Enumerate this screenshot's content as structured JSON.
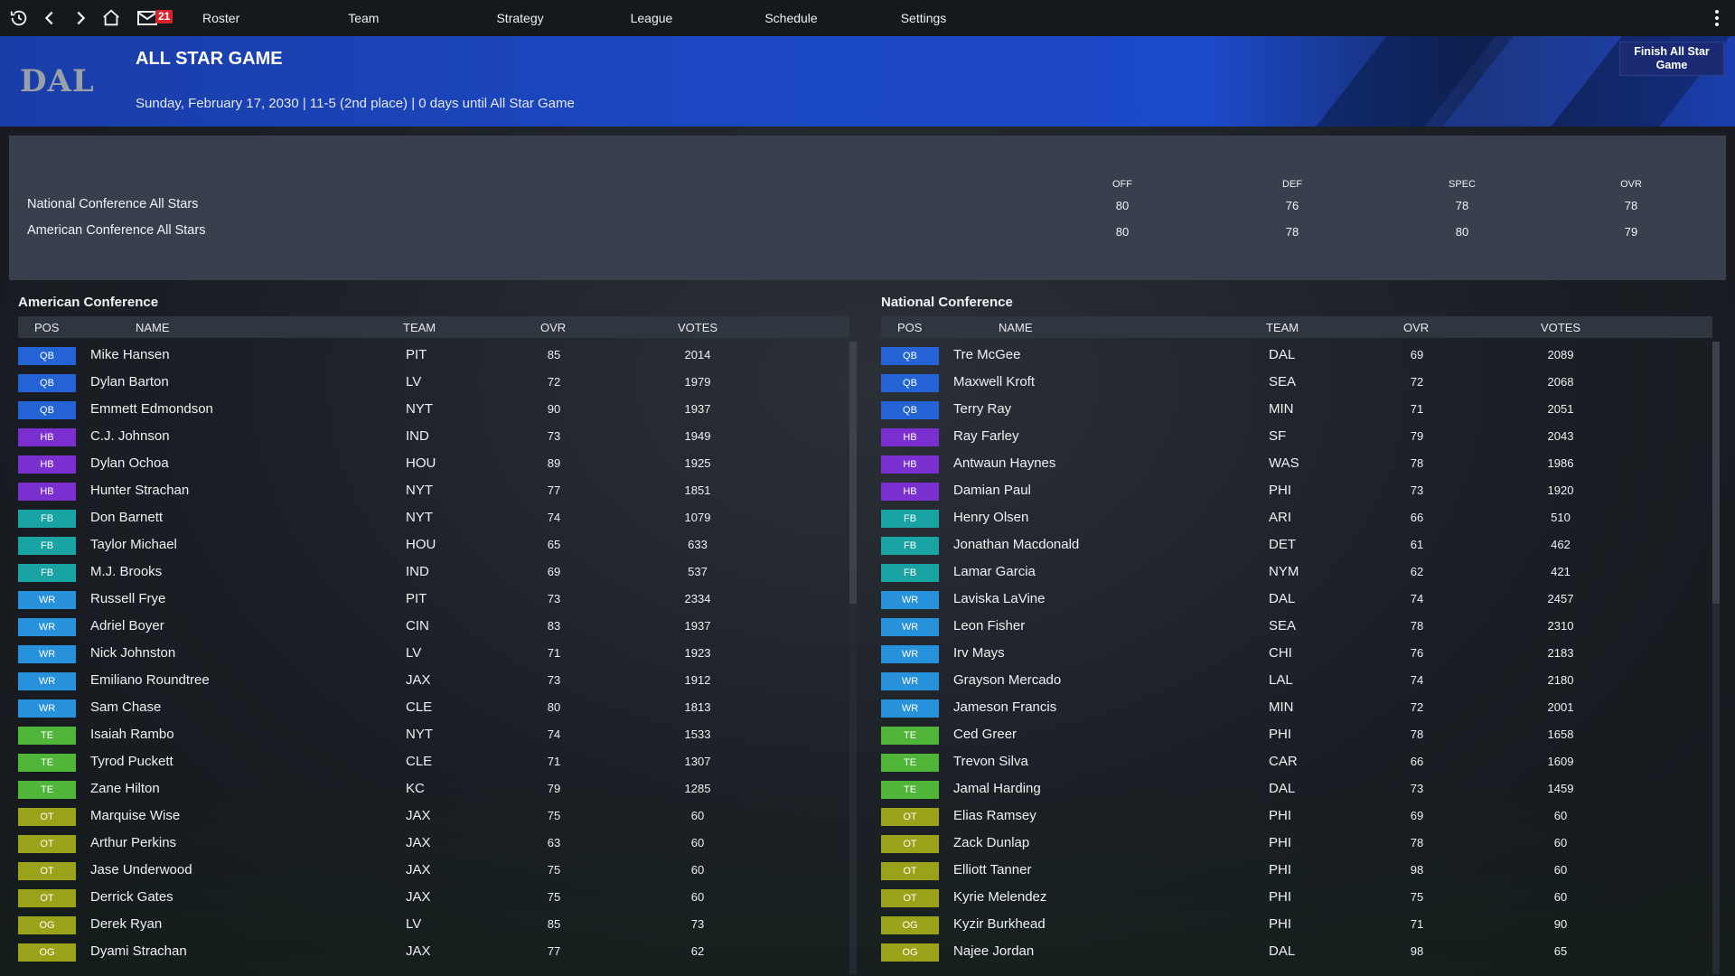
{
  "nav": {
    "mail_count": "21",
    "items": [
      "Roster",
      "Team",
      "Strategy",
      "League",
      "Schedule",
      "Settings"
    ]
  },
  "header": {
    "team_abbr": "DAL",
    "title": "ALL STAR GAME",
    "subtitle": "Sunday, February 17, 2030 | 11-5 (2nd place) | 0 days until All Star Game",
    "finish_button": "Finish All Star Game"
  },
  "summary": {
    "columns": {
      "off": "OFF",
      "def": "DEF",
      "spec": "SPEC",
      "ovr": "OVR"
    },
    "rows": [
      {
        "name": "National Conference All Stars",
        "off": "80",
        "def": "76",
        "spec": "78",
        "ovr": "78"
      },
      {
        "name": "American Conference All Stars",
        "off": "80",
        "def": "78",
        "spec": "80",
        "ovr": "79"
      }
    ]
  },
  "table_headers": {
    "pos": "POS",
    "name": "NAME",
    "team": "TEAM",
    "ovr": "OVR",
    "votes": "VOTES"
  },
  "american": {
    "title": "American Conference",
    "players": [
      {
        "pos": "QB",
        "name": "Mike Hansen",
        "team": "PIT",
        "ovr": "85",
        "votes": "2014"
      },
      {
        "pos": "QB",
        "name": "Dylan Barton",
        "team": "LV",
        "ovr": "72",
        "votes": "1979"
      },
      {
        "pos": "QB",
        "name": "Emmett Edmondson",
        "team": "NYT",
        "ovr": "90",
        "votes": "1937"
      },
      {
        "pos": "HB",
        "name": "C.J. Johnson",
        "team": "IND",
        "ovr": "73",
        "votes": "1949"
      },
      {
        "pos": "HB",
        "name": "Dylan Ochoa",
        "team": "HOU",
        "ovr": "89",
        "votes": "1925"
      },
      {
        "pos": "HB",
        "name": "Hunter Strachan",
        "team": "NYT",
        "ovr": "77",
        "votes": "1851"
      },
      {
        "pos": "FB",
        "name": "Don Barnett",
        "team": "NYT",
        "ovr": "74",
        "votes": "1079"
      },
      {
        "pos": "FB",
        "name": "Taylor Michael",
        "team": "HOU",
        "ovr": "65",
        "votes": "633"
      },
      {
        "pos": "FB",
        "name": "M.J. Brooks",
        "team": "IND",
        "ovr": "69",
        "votes": "537"
      },
      {
        "pos": "WR",
        "name": "Russell Frye",
        "team": "PIT",
        "ovr": "73",
        "votes": "2334"
      },
      {
        "pos": "WR",
        "name": "Adriel Boyer",
        "team": "CIN",
        "ovr": "83",
        "votes": "1937"
      },
      {
        "pos": "WR",
        "name": "Nick Johnston",
        "team": "LV",
        "ovr": "71",
        "votes": "1923"
      },
      {
        "pos": "WR",
        "name": "Emiliano Roundtree",
        "team": "JAX",
        "ovr": "73",
        "votes": "1912"
      },
      {
        "pos": "WR",
        "name": "Sam Chase",
        "team": "CLE",
        "ovr": "80",
        "votes": "1813"
      },
      {
        "pos": "TE",
        "name": "Isaiah Rambo",
        "team": "NYT",
        "ovr": "74",
        "votes": "1533"
      },
      {
        "pos": "TE",
        "name": "Tyrod Puckett",
        "team": "CLE",
        "ovr": "71",
        "votes": "1307"
      },
      {
        "pos": "TE",
        "name": "Zane Hilton",
        "team": "KC",
        "ovr": "79",
        "votes": "1285"
      },
      {
        "pos": "OT",
        "name": "Marquise Wise",
        "team": "JAX",
        "ovr": "75",
        "votes": "60"
      },
      {
        "pos": "OT",
        "name": "Arthur Perkins",
        "team": "JAX",
        "ovr": "63",
        "votes": "60"
      },
      {
        "pos": "OT",
        "name": "Jase Underwood",
        "team": "JAX",
        "ovr": "75",
        "votes": "60"
      },
      {
        "pos": "OT",
        "name": "Derrick Gates",
        "team": "JAX",
        "ovr": "75",
        "votes": "60"
      },
      {
        "pos": "OG",
        "name": "Derek Ryan",
        "team": "LV",
        "ovr": "85",
        "votes": "73"
      },
      {
        "pos": "OG",
        "name": "Dyami Strachan",
        "team": "JAX",
        "ovr": "77",
        "votes": "62"
      }
    ]
  },
  "national": {
    "title": "National Conference",
    "players": [
      {
        "pos": "QB",
        "name": "Tre McGee",
        "team": "DAL",
        "ovr": "69",
        "votes": "2089"
      },
      {
        "pos": "QB",
        "name": "Maxwell Kroft",
        "team": "SEA",
        "ovr": "72",
        "votes": "2068"
      },
      {
        "pos": "QB",
        "name": "Terry Ray",
        "team": "MIN",
        "ovr": "71",
        "votes": "2051"
      },
      {
        "pos": "HB",
        "name": "Ray Farley",
        "team": "SF",
        "ovr": "79",
        "votes": "2043"
      },
      {
        "pos": "HB",
        "name": "Antwaun Haynes",
        "team": "WAS",
        "ovr": "78",
        "votes": "1986"
      },
      {
        "pos": "HB",
        "name": "Damian Paul",
        "team": "PHI",
        "ovr": "73",
        "votes": "1920"
      },
      {
        "pos": "FB",
        "name": "Henry Olsen",
        "team": "ARI",
        "ovr": "66",
        "votes": "510"
      },
      {
        "pos": "FB",
        "name": "Jonathan Macdonald",
        "team": "DET",
        "ovr": "61",
        "votes": "462"
      },
      {
        "pos": "FB",
        "name": "Lamar Garcia",
        "team": "NYM",
        "ovr": "62",
        "votes": "421"
      },
      {
        "pos": "WR",
        "name": "Laviska LaVine",
        "team": "DAL",
        "ovr": "74",
        "votes": "2457"
      },
      {
        "pos": "WR",
        "name": "Leon Fisher",
        "team": "SEA",
        "ovr": "78",
        "votes": "2310"
      },
      {
        "pos": "WR",
        "name": "Irv Mays",
        "team": "CHI",
        "ovr": "76",
        "votes": "2183"
      },
      {
        "pos": "WR",
        "name": "Grayson Mercado",
        "team": "LAL",
        "ovr": "74",
        "votes": "2180"
      },
      {
        "pos": "WR",
        "name": "Jameson Francis",
        "team": "MIN",
        "ovr": "72",
        "votes": "2001"
      },
      {
        "pos": "TE",
        "name": "Ced Greer",
        "team": "PHI",
        "ovr": "78",
        "votes": "1658"
      },
      {
        "pos": "TE",
        "name": "Trevon Silva",
        "team": "CAR",
        "ovr": "66",
        "votes": "1609"
      },
      {
        "pos": "TE",
        "name": "Jamal Harding",
        "team": "DAL",
        "ovr": "73",
        "votes": "1459"
      },
      {
        "pos": "OT",
        "name": "Elias Ramsey",
        "team": "PHI",
        "ovr": "69",
        "votes": "60"
      },
      {
        "pos": "OT",
        "name": "Zack Dunlap",
        "team": "PHI",
        "ovr": "78",
        "votes": "60"
      },
      {
        "pos": "OT",
        "name": "Elliott Tanner",
        "team": "PHI",
        "ovr": "98",
        "votes": "60"
      },
      {
        "pos": "OT",
        "name": "Kyrie Melendez",
        "team": "PHI",
        "ovr": "75",
        "votes": "60"
      },
      {
        "pos": "OG",
        "name": "Kyzir Burkhead",
        "team": "PHI",
        "ovr": "71",
        "votes": "90"
      },
      {
        "pos": "OG",
        "name": "Najee Jordan",
        "team": "DAL",
        "ovr": "98",
        "votes": "65"
      }
    ]
  }
}
